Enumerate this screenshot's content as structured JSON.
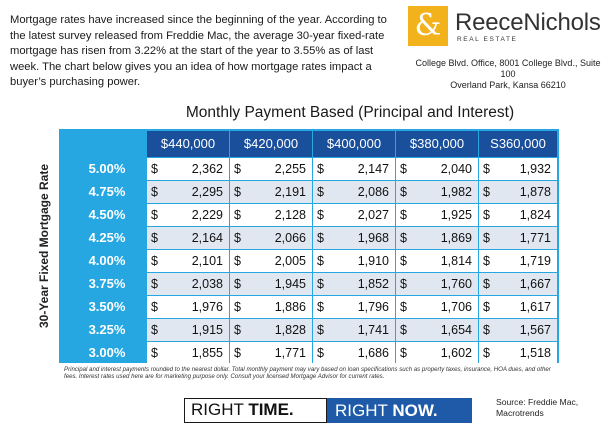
{
  "intro_text": "Mortgage rates have increased since the beginning of the year.  According to the latest survey released from Freddie Mac,  the average 30-year fixed-rate mortgage has risen from 3.22% at the start of the year to 3.55% as of last week. The chart below gives you an idea of how mortgage rates impact a buyer’s  purchasing power.",
  "logo": {
    "symbol": "&",
    "name": "ReeceNichols",
    "sub": "REAL ESTATE",
    "brand_color": "#f2b21b"
  },
  "address": {
    "line1": "College Blvd. Office, 8001 College Blvd., Suite 100",
    "line2": "Overland Park, Kansa 66210"
  },
  "table": {
    "title": "Monthly Payment Based (Principal and Interest)",
    "rate_axis_label": "30-Year Fixed Mortgage Rate",
    "columns": [
      "$440,000",
      "$420,000",
      "$400,000",
      "$380,000",
      "S360,000"
    ],
    "currency": "$",
    "rows": [
      {
        "rate": "5.00%",
        "values": [
          "2,362",
          "2,255",
          "2,147",
          "2,040",
          "1,932"
        ]
      },
      {
        "rate": "4.75%",
        "values": [
          "2,295",
          "2,191",
          "2,086",
          "1,982",
          "1,878"
        ]
      },
      {
        "rate": "4.50%",
        "values": [
          "2,229",
          "2,128",
          "2,027",
          "1,925",
          "1,824"
        ]
      },
      {
        "rate": "4.25%",
        "values": [
          "2,164",
          "2,066",
          "1,968",
          "1,869",
          "1,771"
        ]
      },
      {
        "rate": "4.00%",
        "values": [
          "2,101",
          "2,005",
          "1,910",
          "1,814",
          "1,719"
        ]
      },
      {
        "rate": "3.75%",
        "values": [
          "2,038",
          "1,945",
          "1,852",
          "1,760",
          "1,667"
        ]
      },
      {
        "rate": "3.50%",
        "values": [
          "1,976",
          "1,886",
          "1,796",
          "1,706",
          "1,617"
        ]
      },
      {
        "rate": "3.25%",
        "values": [
          "1,915",
          "1,828",
          "1,741",
          "1,654",
          "1,567"
        ]
      },
      {
        "rate": "3.00%",
        "values": [
          "1,855",
          "1,771",
          "1,686",
          "1,602",
          "1,518"
        ]
      }
    ],
    "colors": {
      "frame": "#27a7e1",
      "header": "#1a4f9c",
      "alt_row": "#e1e7f1"
    }
  },
  "disclaimer": "Principal and interest payments rounded to the nearest dollar. Total monthly payment may vary based on loan specifications such as property taxes, insurance, HOA dues, and other fees. Interest rates used here are for marketing purpose only. Consult your licensed Mortgage Advisor for current rates.",
  "banner": {
    "left_word1": "RIGHT",
    "left_word2": "TIME.",
    "right_word1": "RIGHT",
    "right_word2": "NOW.",
    "accent": "#1e5aa8"
  },
  "source": {
    "line1": "Source:  Freddie Mac,",
    "line2": "Macrotrends"
  }
}
